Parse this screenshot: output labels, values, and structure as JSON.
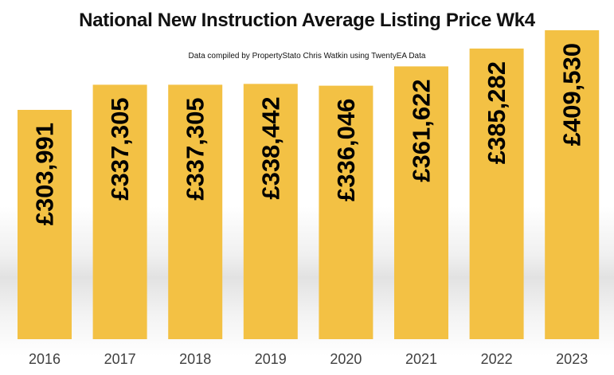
{
  "chart_data": {
    "type": "bar",
    "title": "National New Instruction Average Listing Price Wk4",
    "subtitle": "Data compiled by PropertyStato Chris Watkin using TwentyEA Data",
    "categories": [
      "2016",
      "2017",
      "2018",
      "2019",
      "2020",
      "2021",
      "2022",
      "2023"
    ],
    "values": [
      303991,
      337305,
      337305,
      338442,
      336046,
      361622,
      385282,
      409530
    ],
    "data_labels": [
      "£303,991",
      "£337,305",
      "£337,305",
      "£338,442",
      "£336,046",
      "£361,622",
      "£385,282",
      "£409,530"
    ],
    "bar_color": "#F3C144",
    "ylim": [
      0,
      409530
    ],
    "grid": false,
    "legend": "none",
    "data_label_orientation": "vertical"
  }
}
